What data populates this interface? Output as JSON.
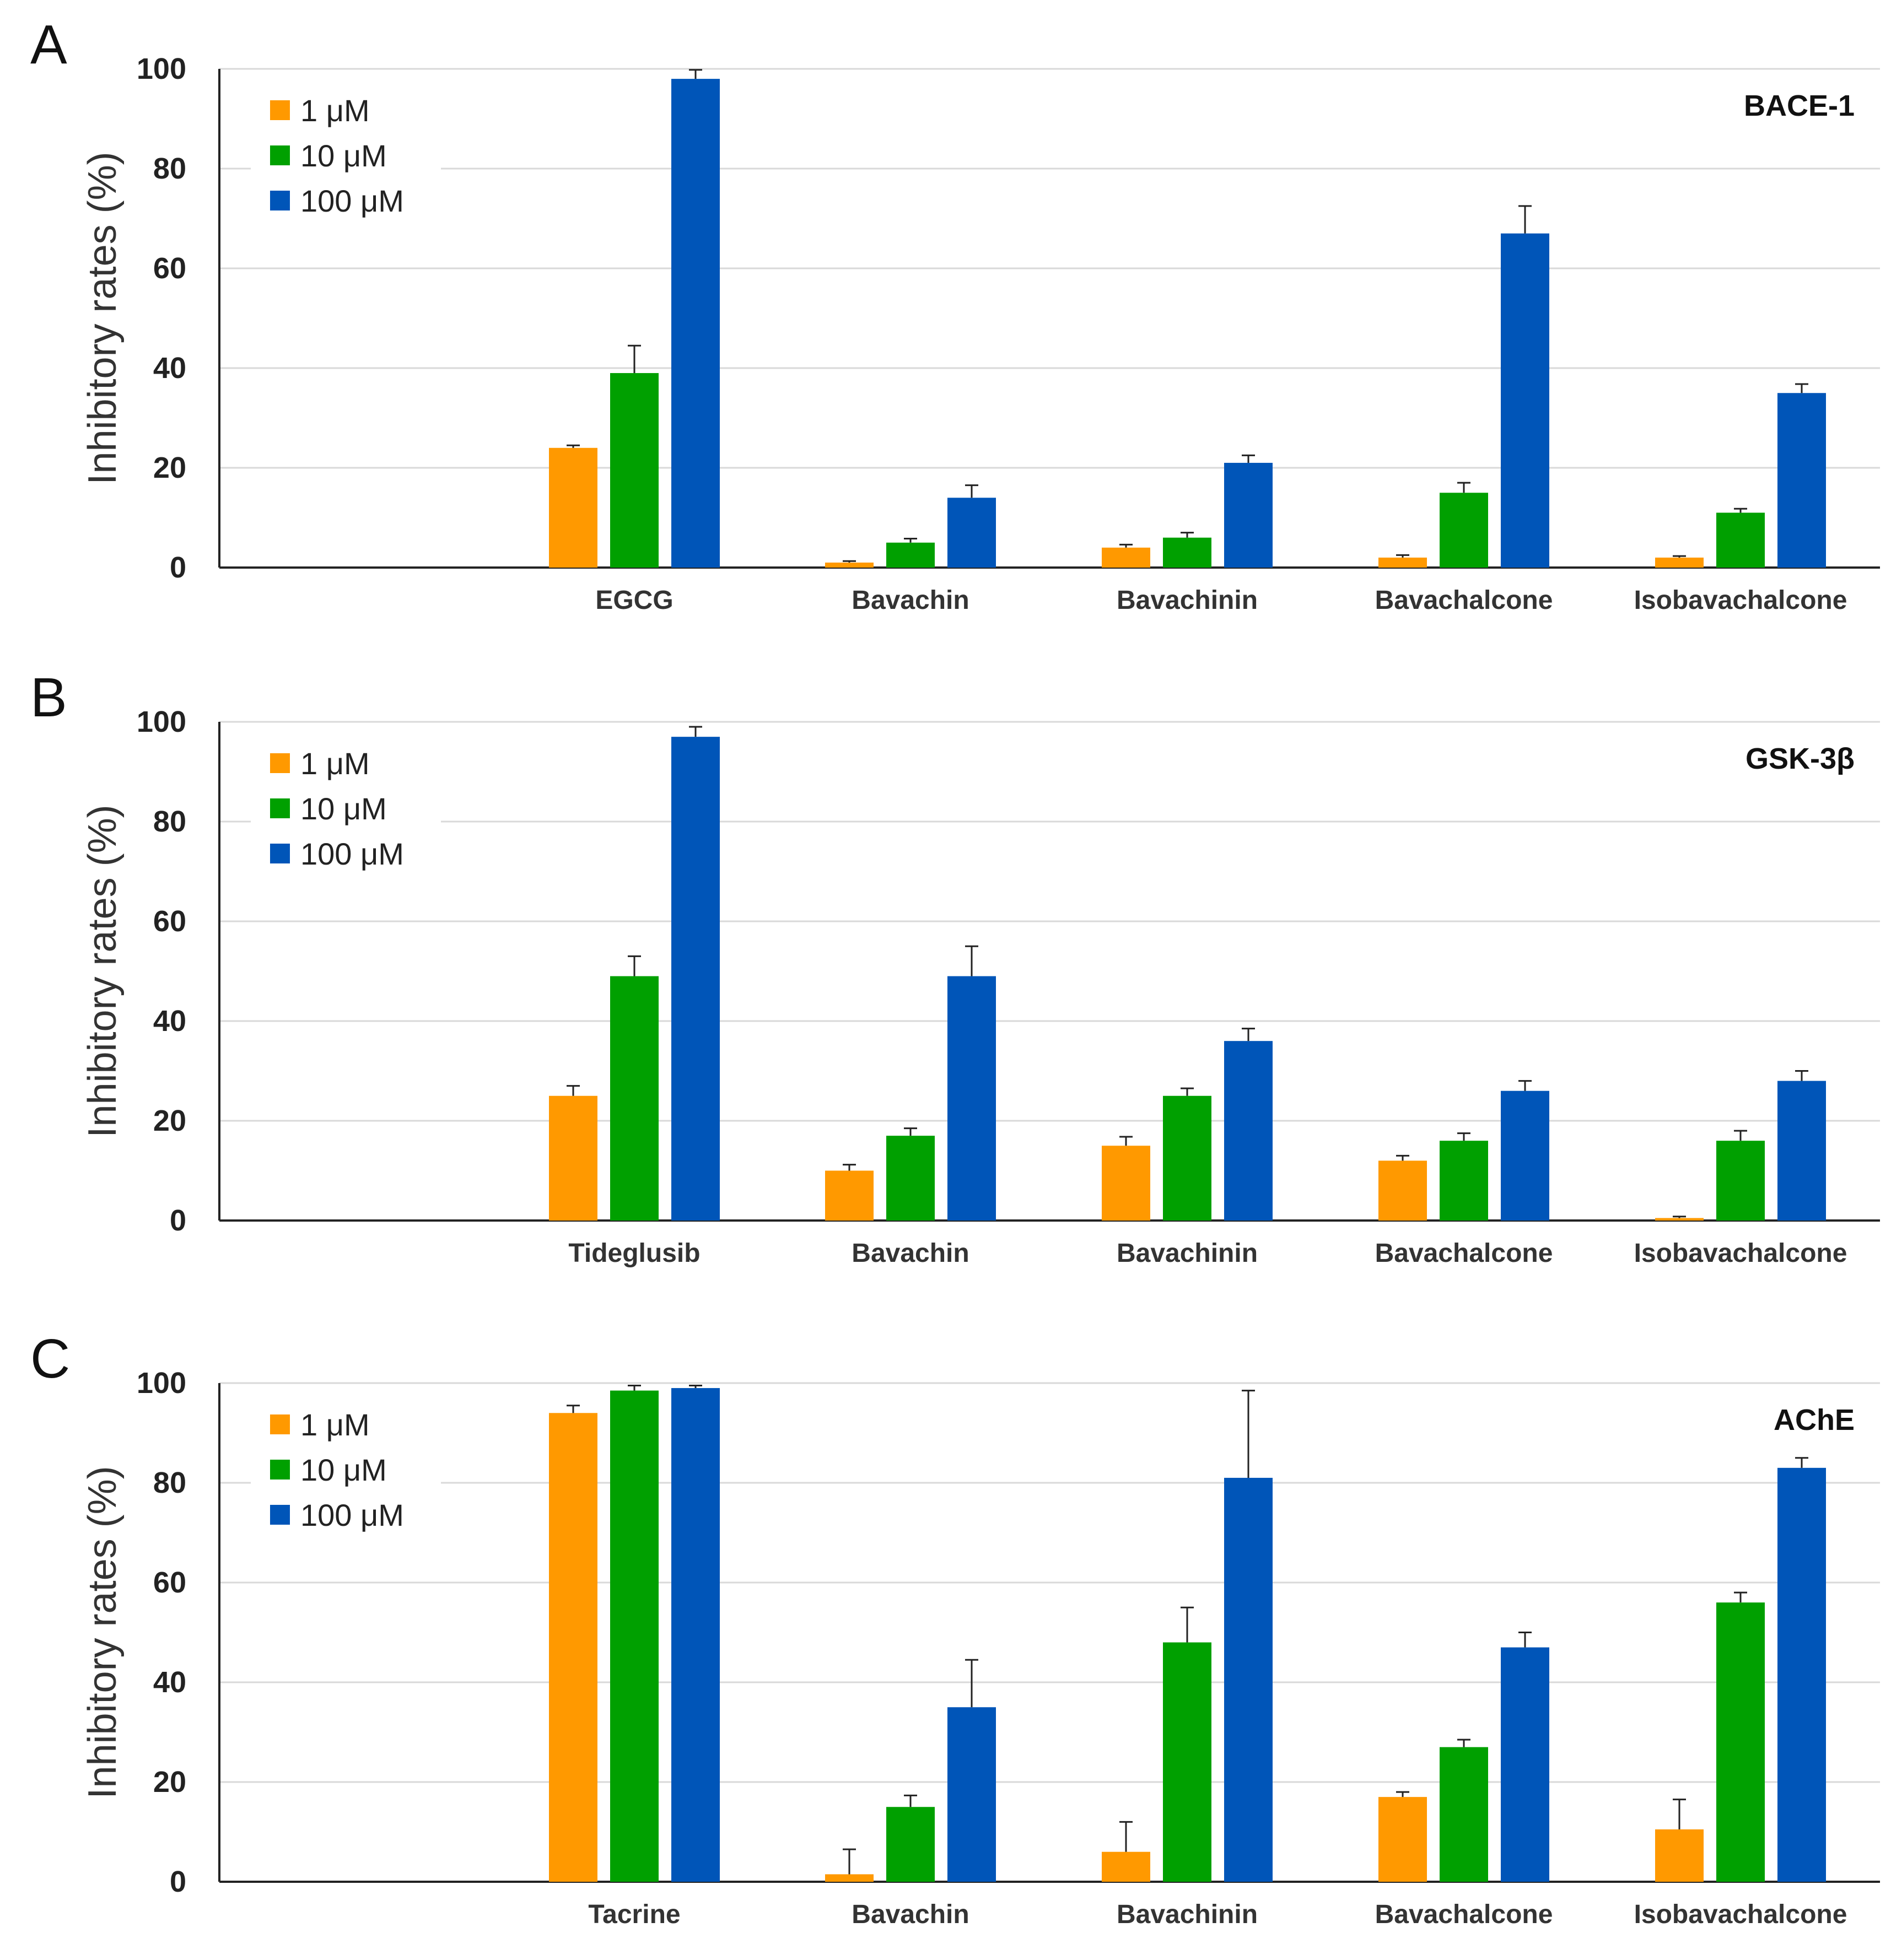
{
  "chart_data": [
    {
      "type": "bar",
      "panel_letter": "A",
      "title": "BACE-1",
      "ylabel": "Inhibitory rates (%)",
      "xlabel": "",
      "ylim": [
        0,
        100
      ],
      "yticks": [
        "0",
        "20",
        "40",
        "60",
        "80",
        "100"
      ],
      "grid": true,
      "legend_position": "top-left",
      "categories": [
        "EGCG",
        "Bavachin",
        "Bavachinin",
        "Bavachalcone",
        "Isobavachalcone"
      ],
      "series": [
        {
          "name": "1 μM",
          "color": "#ff9900",
          "values": [
            24,
            1,
            4,
            2,
            2
          ],
          "errors": [
            0.5,
            0.3,
            0.6,
            0.5,
            0.3
          ]
        },
        {
          "name": "10 μM",
          "color": "#00a000",
          "values": [
            39,
            5,
            6,
            15,
            11
          ],
          "errors": [
            5.5,
            0.8,
            1,
            2,
            0.8
          ]
        },
        {
          "name": "100 μM",
          "color": "#0055b8",
          "values": [
            98,
            14,
            21,
            67,
            35
          ],
          "errors": [
            1.8,
            2.5,
            1.5,
            5.5,
            1.8
          ]
        }
      ]
    },
    {
      "type": "bar",
      "panel_letter": "B",
      "title": "GSK-3β",
      "ylabel": "Inhibitory rates (%)",
      "xlabel": "",
      "ylim": [
        0,
        100
      ],
      "yticks": [
        "0",
        "20",
        "40",
        "60",
        "80",
        "100"
      ],
      "grid": true,
      "legend_position": "top-left",
      "categories": [
        "Tideglusib",
        "Bavachin",
        "Bavachinin",
        "Bavachalcone",
        "Isobavachalcone"
      ],
      "series": [
        {
          "name": "1 μM",
          "color": "#ff9900",
          "values": [
            25,
            10,
            15,
            12,
            0.5
          ],
          "errors": [
            2,
            1.2,
            1.8,
            1,
            0.3
          ]
        },
        {
          "name": "10 μM",
          "color": "#00a000",
          "values": [
            49,
            17,
            25,
            16,
            16
          ],
          "errors": [
            4,
            1.5,
            1.5,
            1.5,
            2
          ]
        },
        {
          "name": "100 μM",
          "color": "#0055b8",
          "values": [
            97,
            49,
            36,
            26,
            28
          ],
          "errors": [
            2,
            6,
            2.5,
            2,
            2
          ]
        }
      ]
    },
    {
      "type": "bar",
      "panel_letter": "C",
      "title": "AChE",
      "ylabel": "Inhibitory rates (%)",
      "xlabel": "",
      "ylim": [
        0,
        100
      ],
      "yticks": [
        "0",
        "20",
        "40",
        "60",
        "80",
        "100"
      ],
      "grid": true,
      "legend_position": "top-left",
      "categories": [
        "Tacrine",
        "Bavachin",
        "Bavachinin",
        "Bavachalcone",
        "Isobavachalcone"
      ],
      "series": [
        {
          "name": "1 μM",
          "color": "#ff9900",
          "values": [
            94,
            1.5,
            6,
            17,
            10.5
          ],
          "errors": [
            1.5,
            5,
            6,
            1,
            6
          ]
        },
        {
          "name": "10 μM",
          "color": "#00a000",
          "values": [
            98.5,
            15,
            48,
            27,
            56
          ],
          "errors": [
            1,
            2.3,
            7,
            1.5,
            2
          ]
        },
        {
          "name": "100 μM",
          "color": "#0055b8",
          "values": [
            99,
            35,
            81,
            47,
            83
          ],
          "errors": [
            0.5,
            9.5,
            17.5,
            3,
            2
          ]
        }
      ]
    }
  ]
}
